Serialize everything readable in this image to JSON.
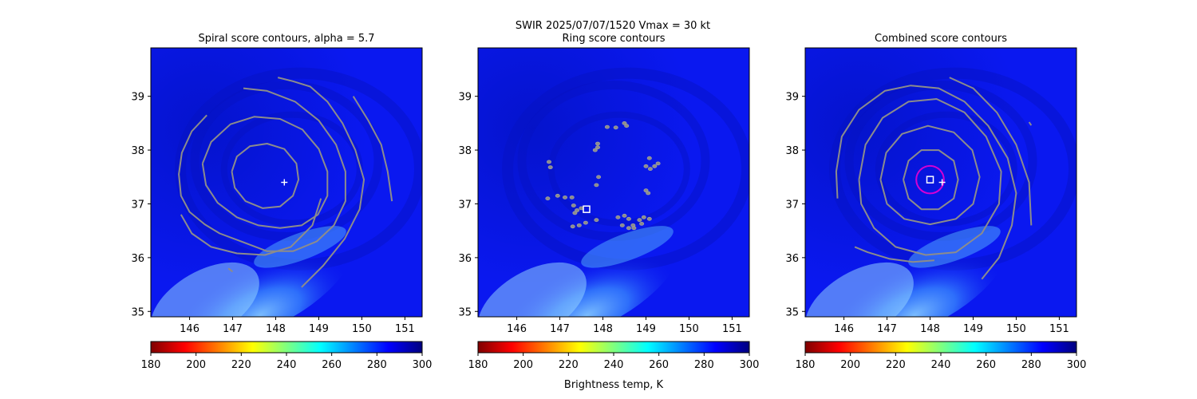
{
  "figure": {
    "suptitle_line1": "SWIR  2025/07/07/1520    Vmax = 30 kt",
    "colorbar_label": "Brightness temp, K"
  },
  "colormap": {
    "name": "jet_r",
    "stops": [
      "#7f0000",
      "#ff0000",
      "#ff7f00",
      "#ffff00",
      "#7fff7f",
      "#00ffff",
      "#007fff",
      "#0000ff",
      "#00007f"
    ]
  },
  "colors": {
    "contour": "#8c8c8c",
    "marker": "#ffffff",
    "magenta_ring": "#d400d4",
    "background_field": "#0a18f0"
  },
  "chart_data": [
    {
      "type": "heatmap",
      "panel": "spiral",
      "title": "Spiral score contours, alpha =  5.7",
      "xlim": [
        145.1,
        151.4
      ],
      "ylim": [
        34.9,
        39.9
      ],
      "xticks": [
        146,
        147,
        148,
        149,
        150,
        151
      ],
      "yticks": [
        35,
        36,
        37,
        38,
        39
      ],
      "colorbar": {
        "range": [
          180,
          300
        ],
        "ticks": [
          180,
          200,
          220,
          240,
          260,
          280,
          300
        ]
      },
      "center_marker": {
        "symbol": "plus",
        "lon": 148.2,
        "lat": 37.4
      },
      "contours": [
        [
          [
            146.98,
            37.6
          ],
          [
            147.1,
            37.88
          ],
          [
            147.4,
            38.07
          ],
          [
            147.8,
            38.12
          ],
          [
            148.2,
            38.02
          ],
          [
            148.48,
            37.75
          ],
          [
            148.53,
            37.45
          ],
          [
            148.4,
            37.15
          ],
          [
            148.1,
            36.95
          ],
          [
            147.7,
            36.92
          ],
          [
            147.3,
            37.05
          ],
          [
            147.05,
            37.3
          ],
          [
            146.98,
            37.6
          ]
        ],
        [
          [
            146.3,
            37.75
          ],
          [
            146.5,
            38.15
          ],
          [
            146.95,
            38.48
          ],
          [
            147.5,
            38.62
          ],
          [
            148.1,
            38.58
          ],
          [
            148.62,
            38.38
          ],
          [
            149.0,
            38.02
          ],
          [
            149.2,
            37.6
          ],
          [
            149.2,
            37.15
          ],
          [
            148.98,
            36.8
          ],
          [
            148.6,
            36.6
          ],
          [
            148.1,
            36.55
          ],
          [
            147.6,
            36.6
          ],
          [
            147.1,
            36.75
          ],
          [
            146.65,
            37.02
          ],
          [
            146.38,
            37.35
          ],
          [
            146.3,
            37.75
          ]
        ],
        [
          [
            147.25,
            39.15
          ],
          [
            147.8,
            39.1
          ],
          [
            148.45,
            38.9
          ],
          [
            149.0,
            38.55
          ],
          [
            149.4,
            38.1
          ],
          [
            149.62,
            37.6
          ],
          [
            149.62,
            37.05
          ],
          [
            149.35,
            36.6
          ],
          [
            148.95,
            36.3
          ],
          [
            148.4,
            36.12
          ],
          [
            147.8,
            36.12
          ],
          [
            147.2,
            36.3
          ],
          [
            146.7,
            36.45
          ],
          [
            146.35,
            36.62
          ],
          [
            146.0,
            36.85
          ],
          [
            145.8,
            37.15
          ],
          [
            145.75,
            37.55
          ],
          [
            145.82,
            37.95
          ],
          [
            146.05,
            38.35
          ],
          [
            146.4,
            38.65
          ]
        ],
        [
          [
            145.8,
            36.8
          ],
          [
            146.05,
            36.45
          ],
          [
            146.5,
            36.2
          ],
          [
            147.1,
            36.08
          ],
          [
            147.75,
            36.05
          ],
          [
            148.35,
            36.2
          ],
          [
            148.85,
            36.6
          ],
          [
            149.05,
            37.1
          ]
        ],
        [
          [
            148.05,
            39.35
          ],
          [
            148.4,
            39.28
          ],
          [
            148.8,
            39.18
          ],
          [
            149.2,
            38.9
          ],
          [
            149.55,
            38.5
          ],
          [
            149.85,
            38.0
          ],
          [
            150.05,
            37.45
          ],
          [
            149.95,
            36.9
          ],
          [
            149.6,
            36.35
          ],
          [
            149.1,
            35.85
          ],
          [
            148.6,
            35.45
          ]
        ],
        [
          [
            149.8,
            39.0
          ],
          [
            150.15,
            38.55
          ],
          [
            150.45,
            38.1
          ],
          [
            150.6,
            37.6
          ],
          [
            150.7,
            37.05
          ]
        ],
        [
          [
            146.9,
            35.8
          ],
          [
            147.0,
            35.74
          ]
        ]
      ]
    },
    {
      "type": "heatmap",
      "panel": "ring",
      "title": "Ring score contours",
      "xlim": [
        145.1,
        151.4
      ],
      "ylim": [
        34.9,
        39.9
      ],
      "xticks": [
        146,
        147,
        148,
        149,
        150,
        151
      ],
      "yticks": [
        35,
        36,
        37,
        38,
        39
      ],
      "colorbar": {
        "range": [
          180,
          300
        ],
        "ticks": [
          180,
          200,
          220,
          240,
          260,
          280,
          300
        ]
      },
      "center_marker": {
        "symbol": "square",
        "lon": 147.62,
        "lat": 36.9
      },
      "blobs": [
        [
          146.75,
          37.78
        ],
        [
          146.78,
          37.68
        ],
        [
          146.72,
          37.1
        ],
        [
          146.95,
          37.15
        ],
        [
          147.12,
          37.12
        ],
        [
          147.28,
          37.12
        ],
        [
          147.32,
          36.97
        ],
        [
          147.4,
          36.88
        ],
        [
          147.5,
          36.92
        ],
        [
          147.35,
          36.83
        ],
        [
          147.3,
          36.58
        ],
        [
          147.45,
          36.6
        ],
        [
          147.6,
          36.65
        ],
        [
          147.85,
          36.7
        ],
        [
          147.85,
          37.35
        ],
        [
          147.9,
          37.5
        ],
        [
          147.82,
          38.0
        ],
        [
          147.88,
          38.05
        ],
        [
          147.88,
          38.12
        ],
        [
          148.1,
          38.43
        ],
        [
          148.3,
          38.42
        ],
        [
          148.5,
          38.5
        ],
        [
          148.55,
          38.45
        ],
        [
          148.35,
          36.75
        ],
        [
          148.5,
          36.78
        ],
        [
          148.6,
          36.72
        ],
        [
          148.7,
          36.6
        ],
        [
          148.85,
          36.7
        ],
        [
          148.95,
          36.75
        ],
        [
          149.08,
          36.72
        ],
        [
          148.45,
          36.6
        ],
        [
          148.6,
          36.55
        ],
        [
          148.72,
          36.55
        ],
        [
          148.9,
          36.63
        ],
        [
          149.0,
          37.7
        ],
        [
          149.1,
          37.65
        ],
        [
          149.2,
          37.7
        ],
        [
          149.28,
          37.75
        ],
        [
          149.08,
          37.85
        ],
        [
          149.0,
          37.25
        ],
        [
          149.05,
          37.2
        ]
      ]
    },
    {
      "type": "heatmap",
      "panel": "combined",
      "title": "Combined score contours",
      "xlim": [
        145.1,
        151.4
      ],
      "ylim": [
        34.9,
        39.9
      ],
      "xticks": [
        146,
        147,
        148,
        149,
        150,
        151
      ],
      "yticks": [
        35,
        36,
        37,
        38,
        39
      ],
      "colorbar": {
        "range": [
          180,
          300
        ],
        "ticks": [
          180,
          200,
          220,
          240,
          260,
          280,
          300
        ]
      },
      "center_marker": {
        "symbol": "plus",
        "lon": 148.28,
        "lat": 37.4
      },
      "square_marker": {
        "lon": 148.0,
        "lat": 37.45
      },
      "ring": {
        "lon": 148.0,
        "lat": 37.45,
        "radius_deg": 0.32
      },
      "contours": [
        [
          [
            147.38,
            37.45
          ],
          [
            147.5,
            37.8
          ],
          [
            147.8,
            38.0
          ],
          [
            148.2,
            38.0
          ],
          [
            148.55,
            37.8
          ],
          [
            148.65,
            37.45
          ],
          [
            148.55,
            37.1
          ],
          [
            148.2,
            36.9
          ],
          [
            147.8,
            36.9
          ],
          [
            147.5,
            37.1
          ],
          [
            147.38,
            37.45
          ]
        ],
        [
          [
            146.85,
            37.45
          ],
          [
            146.98,
            37.95
          ],
          [
            147.35,
            38.3
          ],
          [
            147.95,
            38.45
          ],
          [
            148.55,
            38.33
          ],
          [
            148.98,
            38.0
          ],
          [
            149.15,
            37.5
          ],
          [
            149.0,
            37.0
          ],
          [
            148.6,
            36.72
          ],
          [
            148.0,
            36.62
          ],
          [
            147.4,
            36.72
          ],
          [
            147.0,
            37.0
          ],
          [
            146.85,
            37.45
          ]
        ],
        [
          [
            146.35,
            37.45
          ],
          [
            146.5,
            38.1
          ],
          [
            146.9,
            38.6
          ],
          [
            147.5,
            38.9
          ],
          [
            148.15,
            38.95
          ],
          [
            148.8,
            38.7
          ],
          [
            149.3,
            38.25
          ],
          [
            149.65,
            37.6
          ],
          [
            149.6,
            37.0
          ],
          [
            149.2,
            36.45
          ],
          [
            148.6,
            36.1
          ],
          [
            147.9,
            36.05
          ],
          [
            147.2,
            36.2
          ],
          [
            146.7,
            36.55
          ],
          [
            146.4,
            37.0
          ],
          [
            146.35,
            37.45
          ]
        ],
        [
          [
            145.85,
            37.1
          ],
          [
            145.82,
            37.6
          ],
          [
            145.95,
            38.25
          ],
          [
            146.35,
            38.75
          ],
          [
            146.95,
            39.1
          ],
          [
            147.55,
            39.2
          ],
          [
            148.2,
            39.15
          ],
          [
            148.8,
            38.9
          ],
          [
            149.35,
            38.45
          ],
          [
            149.8,
            37.85
          ],
          [
            150.0,
            37.2
          ],
          [
            149.9,
            36.6
          ],
          [
            149.6,
            36.0
          ],
          [
            149.2,
            35.6
          ]
        ],
        [
          [
            146.25,
            36.2
          ],
          [
            146.55,
            36.1
          ],
          [
            147.05,
            35.98
          ],
          [
            147.6,
            35.92
          ],
          [
            148.1,
            35.95
          ]
        ],
        [
          [
            148.45,
            39.35
          ],
          [
            149.0,
            39.15
          ],
          [
            149.55,
            38.7
          ],
          [
            150.0,
            38.1
          ],
          [
            150.3,
            37.4
          ],
          [
            150.35,
            36.6
          ]
        ],
        [
          [
            150.3,
            38.52
          ],
          [
            150.35,
            38.46
          ]
        ]
      ]
    }
  ]
}
